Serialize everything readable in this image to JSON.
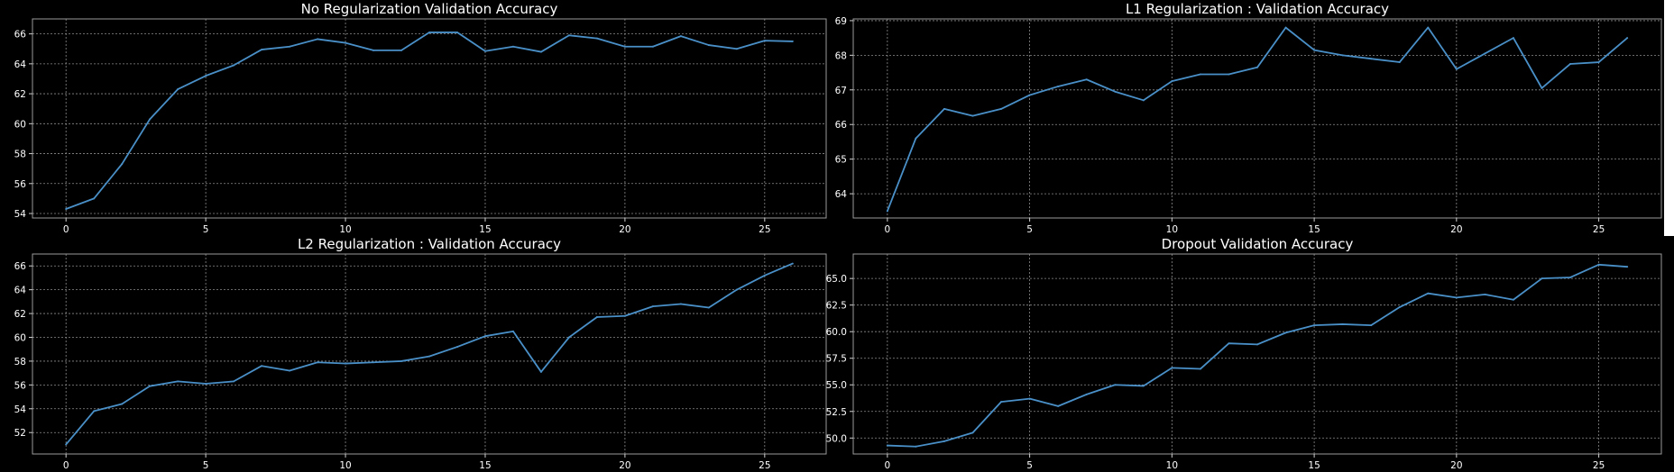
{
  "chart_data": [
    {
      "type": "line",
      "title": "No Regularization Validation Accuracy",
      "x": [
        0,
        1,
        2,
        3,
        4,
        5,
        6,
        7,
        8,
        9,
        10,
        11,
        12,
        13,
        14,
        15,
        16,
        17,
        18,
        19,
        20,
        21,
        22,
        23,
        24,
        25,
        26
      ],
      "series": [
        {
          "values": [
            54.3,
            55.0,
            57.3,
            60.3,
            62.3,
            63.2,
            63.9,
            64.95,
            65.15,
            65.65,
            65.4,
            64.9,
            64.9,
            66.1,
            66.1,
            64.85,
            65.15,
            64.8,
            65.9,
            65.7,
            65.15,
            65.15,
            65.85,
            65.25,
            65.0,
            65.55,
            65.5
          ]
        }
      ],
      "xlim": [
        -1.2,
        27.2
      ],
      "ylim": [
        53.7,
        67.0
      ],
      "xticks": [
        0,
        5,
        10,
        15,
        20,
        25
      ],
      "xticklabels": [
        "0",
        "5",
        "10",
        "15",
        "20",
        "25"
      ],
      "yticks": [
        54,
        56,
        58,
        60,
        62,
        64,
        66
      ],
      "yticklabels": [
        "54",
        "56",
        "58",
        "60",
        "62",
        "64",
        "66"
      ],
      "grid": true
    },
    {
      "type": "line",
      "title": "L1 Regularization : Validation Accuracy",
      "x": [
        0,
        1,
        2,
        3,
        4,
        5,
        6,
        7,
        8,
        9,
        10,
        11,
        12,
        13,
        14,
        15,
        16,
        17,
        18,
        19,
        20,
        21,
        22,
        23,
        24,
        25,
        26
      ],
      "series": [
        {
          "values": [
            63.5,
            65.6,
            66.45,
            66.25,
            66.45,
            66.85,
            67.1,
            67.3,
            66.95,
            66.7,
            67.25,
            67.45,
            67.45,
            67.65,
            68.8,
            68.15,
            68.0,
            67.9,
            67.8,
            68.8,
            67.6,
            68.05,
            68.5,
            67.05,
            67.75,
            67.8,
            68.5
          ]
        }
      ],
      "xlim": [
        -1.2,
        27.2
      ],
      "ylim": [
        63.3,
        69.05
      ],
      "xticks": [
        0,
        5,
        10,
        15,
        20,
        25
      ],
      "xticklabels": [
        "0",
        "5",
        "10",
        "15",
        "20",
        "25"
      ],
      "yticks": [
        64,
        65,
        66,
        67,
        68,
        69
      ],
      "yticklabels": [
        "64",
        "65",
        "66",
        "67",
        "68",
        "69"
      ],
      "grid": true
    },
    {
      "type": "line",
      "title": "L2 Regularization : Validation Accuracy",
      "x": [
        0,
        1,
        2,
        3,
        4,
        5,
        6,
        7,
        8,
        9,
        10,
        11,
        12,
        13,
        14,
        15,
        16,
        17,
        18,
        19,
        20,
        21,
        22,
        23,
        24,
        25,
        26
      ],
      "series": [
        {
          "values": [
            51.0,
            53.8,
            54.4,
            55.9,
            56.3,
            56.1,
            56.3,
            57.6,
            57.2,
            57.9,
            57.8,
            57.9,
            58.0,
            58.4,
            59.2,
            60.1,
            60.5,
            57.1,
            60.0,
            61.7,
            61.8,
            62.6,
            62.8,
            62.5,
            64.0,
            65.2,
            66.2
          ]
        }
      ],
      "xlim": [
        -1.2,
        27.2
      ],
      "ylim": [
        50.2,
        67.0
      ],
      "xticks": [
        0,
        5,
        10,
        15,
        20,
        25
      ],
      "xticklabels": [
        "0",
        "5",
        "10",
        "15",
        "20",
        "25"
      ],
      "yticks": [
        52,
        54,
        56,
        58,
        60,
        62,
        64,
        66
      ],
      "yticklabels": [
        "52",
        "54",
        "56",
        "58",
        "60",
        "62",
        "64",
        "66"
      ],
      "grid": true
    },
    {
      "type": "line",
      "title": "Dropout Validation Accuracy",
      "x": [
        0,
        1,
        2,
        3,
        4,
        5,
        6,
        7,
        8,
        9,
        10,
        11,
        12,
        13,
        14,
        15,
        16,
        17,
        18,
        19,
        20,
        21,
        22,
        23,
        24,
        25,
        26
      ],
      "series": [
        {
          "values": [
            49.3,
            49.2,
            49.7,
            50.5,
            53.4,
            53.7,
            53.0,
            54.1,
            55.0,
            54.9,
            56.6,
            56.5,
            58.9,
            58.8,
            59.9,
            60.6,
            60.7,
            60.6,
            62.3,
            63.6,
            63.2,
            63.5,
            63.0,
            65.0,
            65.1,
            66.3,
            66.1
          ]
        }
      ],
      "xlim": [
        -1.2,
        27.2
      ],
      "ylim": [
        48.5,
        67.3
      ],
      "xticks": [
        0,
        5,
        10,
        15,
        20,
        25
      ],
      "xticklabels": [
        "0",
        "5",
        "10",
        "15",
        "20",
        "25"
      ],
      "yticks": [
        50,
        52.5,
        55,
        57.5,
        60,
        62.5,
        65
      ],
      "yticklabels": [
        "50.0",
        "52.5",
        "55.0",
        "57.5",
        "60.0",
        "62.5",
        "65.0"
      ],
      "grid": true
    }
  ],
  "colors": {
    "line": "#4a90c8",
    "background": "#000000",
    "text": "#ffffff"
  }
}
